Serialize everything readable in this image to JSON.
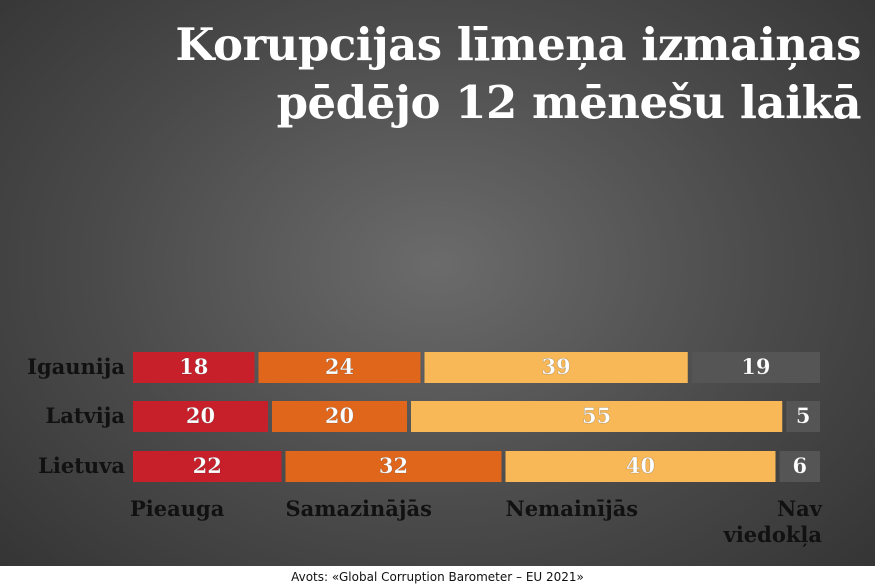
{
  "chart_data": {
    "type": "stacked-bar",
    "title": "Korupcijas līmeņa izmaiņas pēdējo 12 mēnešu laikā",
    "categories": [
      "Igaunija",
      "Latvija",
      "Lietuva"
    ],
    "series": [
      {
        "name": "Pieauga",
        "color": "#c8202a",
        "values": [
          18,
          20,
          22
        ]
      },
      {
        "name": "Samazinājās",
        "color": "#e0661c",
        "values": [
          24,
          20,
          32
        ]
      },
      {
        "name": "Nemainījās",
        "color": "#f8b857",
        "values": [
          39,
          55,
          40
        ]
      },
      {
        "name": "Nav viedokļa",
        "color": "#555555",
        "values": [
          19,
          5,
          6
        ]
      }
    ],
    "source": "Avots: «Global Corruption Barometer – EU 2021»"
  }
}
